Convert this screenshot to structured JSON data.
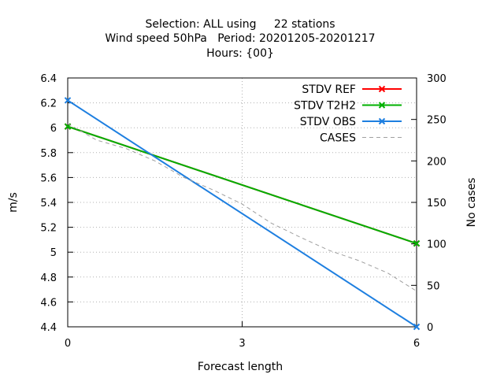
{
  "chart_data": {
    "type": "line",
    "title_lines": [
      "Selection: ALL using     22 stations",
      "Wind speed 50hPa   Period: 20201205-20201217",
      "Hours: {00}"
    ],
    "xlabel": "Forecast length",
    "ylabel": "m/s",
    "y2label": "No cases",
    "x": [
      0,
      6
    ],
    "xlim": [
      0,
      6
    ],
    "xticks": [
      0,
      3,
      6
    ],
    "ylim": [
      4.4,
      6.4
    ],
    "yticks": [
      4.4,
      4.6,
      4.8,
      5.0,
      5.2,
      5.4,
      5.6,
      5.8,
      6.0,
      6.2,
      6.4
    ],
    "ytick_labels": [
      "4.4",
      "4.6",
      "4.8",
      "5",
      "5.2",
      "5.4",
      "5.6",
      "5.8",
      "6",
      "6.2",
      "6.4"
    ],
    "y2lim": [
      0,
      300
    ],
    "y2ticks": [
      0,
      50,
      100,
      150,
      200,
      250,
      300
    ],
    "grid": true,
    "legend_position": "top-right",
    "series": [
      {
        "name": "STDV REF",
        "axis": "y",
        "color": "#ff0000",
        "marker": "x",
        "dash": false,
        "values": [
          6.01,
          5.07
        ]
      },
      {
        "name": "STDV T2H2",
        "axis": "y",
        "color": "#00b000",
        "marker": "x",
        "dash": false,
        "values": [
          6.01,
          5.07
        ]
      },
      {
        "name": "STDV OBS",
        "axis": "y",
        "color": "#1e7fe0",
        "marker": "x",
        "dash": false,
        "values": [
          6.22,
          4.4
        ]
      },
      {
        "name": "CASES",
        "axis": "y2",
        "color": "#a0a0a0",
        "marker": "none",
        "dash": true,
        "points": [
          [
            0,
            245
          ],
          [
            0.5,
            225
          ],
          [
            1,
            215
          ],
          [
            1.5,
            200
          ],
          [
            2,
            180
          ],
          [
            2.5,
            165
          ],
          [
            3,
            148
          ],
          [
            3.5,
            125
          ],
          [
            4,
            108
          ],
          [
            4.5,
            92
          ],
          [
            5,
            80
          ],
          [
            5.5,
            65
          ],
          [
            6,
            43
          ]
        ]
      }
    ]
  }
}
